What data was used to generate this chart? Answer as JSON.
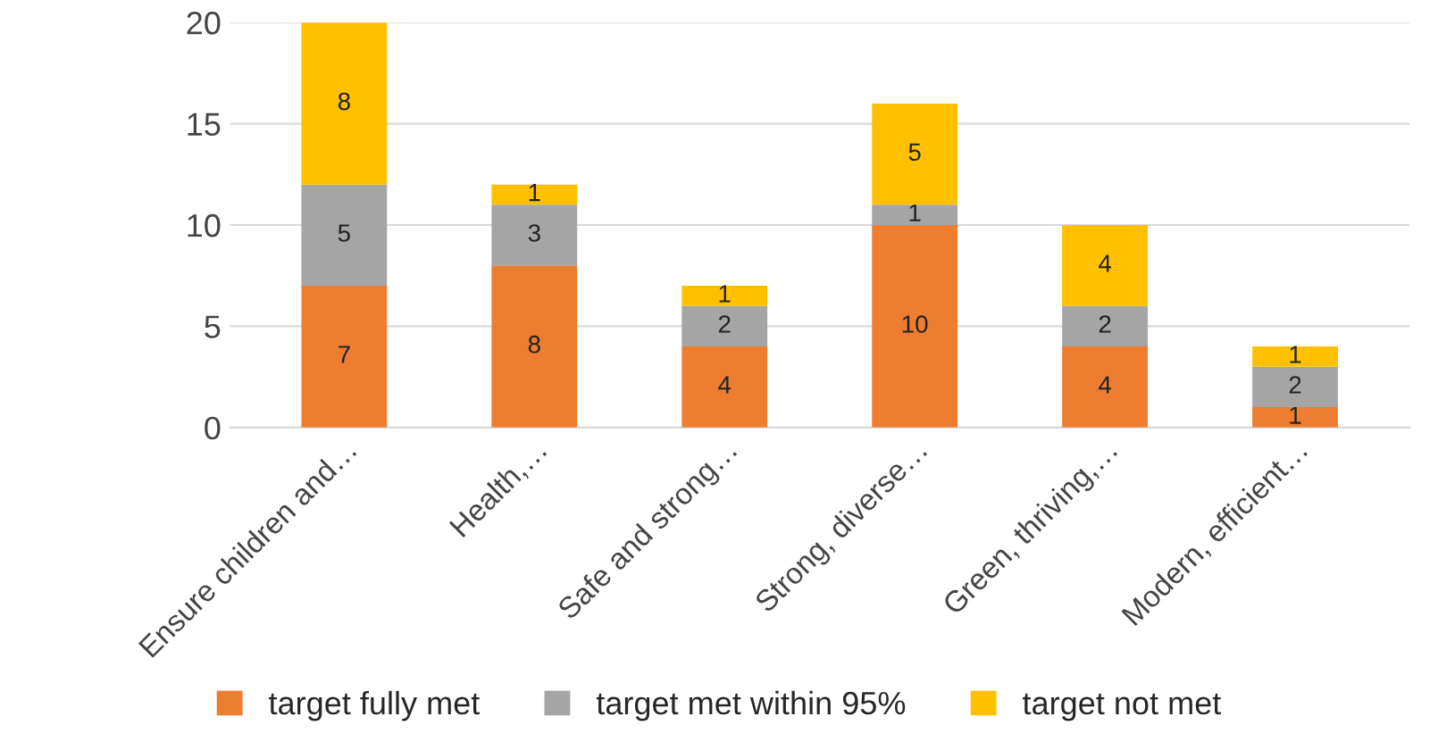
{
  "chart_data": {
    "type": "bar",
    "stacked": true,
    "categories": [
      "Ensure children and…",
      "Health,…",
      "Safe and strong…",
      "Strong, diverse…",
      "Green, thriving,…",
      "Modern, efficient…"
    ],
    "series": [
      {
        "name": "target fully met",
        "color": "#ed7d31",
        "values": [
          7,
          8,
          4,
          10,
          4,
          1
        ]
      },
      {
        "name": "target met within 95%",
        "color": "#a5a5a5",
        "values": [
          5,
          3,
          2,
          1,
          2,
          2
        ]
      },
      {
        "name": "target not met",
        "color": "#ffc000",
        "values": [
          8,
          1,
          1,
          5,
          4,
          1
        ]
      }
    ],
    "ylim": [
      0,
      20
    ],
    "yticks": [
      0,
      5,
      10,
      15,
      20
    ],
    "grid": "y",
    "legend": "bottom",
    "data_labels": true
  }
}
